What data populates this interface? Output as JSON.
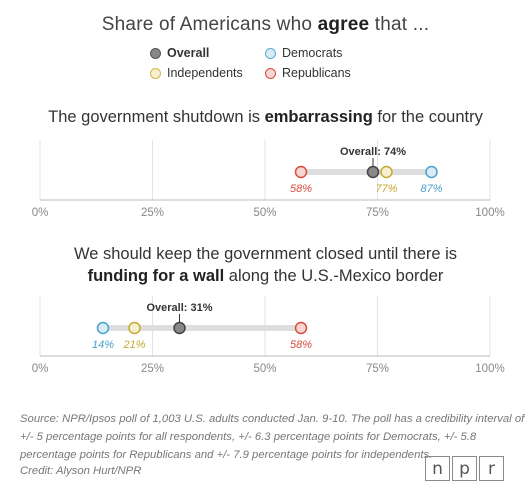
{
  "header": {
    "title_before": "Share of Americans who ",
    "title_bold": "agree",
    "title_after": " that ..."
  },
  "legend": [
    {
      "label": "Overall",
      "color": "#666666",
      "fill": "#888888",
      "bold": true
    },
    {
      "label": "Democrats",
      "color": "#5aaad3",
      "fill": "#d9ecf6",
      "bold": false
    },
    {
      "label": "Independents",
      "color": "#d6b642",
      "fill": "#f6efd2",
      "bold": false
    },
    {
      "label": "Republicans",
      "color": "#d94c3f",
      "fill": "#f6d6d2",
      "bold": false
    }
  ],
  "chart_data": [
    {
      "type": "dot",
      "title_parts": [
        {
          "text": "The government shutdown is ",
          "bold": false
        },
        {
          "text": "embarrassing",
          "bold": true
        },
        {
          "text": " for the country",
          "bold": false
        }
      ],
      "xlim": [
        0,
        100
      ],
      "ticks": [
        "0%",
        "25%",
        "50%",
        "75%",
        "100%"
      ],
      "overall_label": "Overall: 74%",
      "overall": 74,
      "groups": [
        {
          "name": "Republicans",
          "value": 58,
          "label": "58%",
          "color": "#d94c3f",
          "fill": "#f6d6d2"
        },
        {
          "name": "Independents",
          "value": 77,
          "label": "77%",
          "color": "#c9a82e",
          "fill": "#f6efd2"
        },
        {
          "name": "Democrats",
          "value": 87,
          "label": "87%",
          "color": "#4aa0cc",
          "fill": "#d9ecf6"
        }
      ]
    },
    {
      "type": "dot",
      "title_line1": "We should keep the government closed until there is",
      "title_line2_bold": "funding for a wall",
      "title_line2_rest": " along the U.S.-Mexico border",
      "xlim": [
        0,
        100
      ],
      "ticks": [
        "0%",
        "25%",
        "50%",
        "75%",
        "100%"
      ],
      "overall_label": "Overall: 31%",
      "overall": 31,
      "groups": [
        {
          "name": "Democrats",
          "value": 14,
          "label": "14%",
          "color": "#4aa0cc",
          "fill": "#d9ecf6"
        },
        {
          "name": "Independents",
          "value": 21,
          "label": "21%",
          "color": "#c9a82e",
          "fill": "#f6efd2"
        },
        {
          "name": "Republicans",
          "value": 58,
          "label": "58%",
          "color": "#d94c3f",
          "fill": "#f6d6d2"
        }
      ]
    }
  ],
  "footer": {
    "source_lines": [
      "Source: NPR/Ipsos poll of 1,003 U.S. adults conducted Jan. 9-10. The poll has a credibility interval of",
      "+/- 5 percentage points for all respondents, +/- 6.3 percentage points for Democrats, +/- 5.8",
      "percentage points for Republicans and +/- 7.9 percentage points for independents."
    ],
    "credit": "Credit: Alyson Hurt/NPR",
    "logo_letters": [
      "n",
      "p",
      "r"
    ]
  }
}
